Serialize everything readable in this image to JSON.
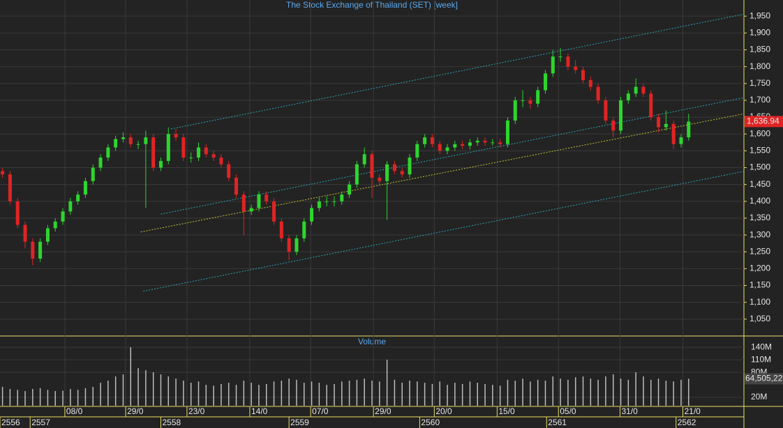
{
  "chart_data": [
    {
      "type": "candlestick",
      "title": "The Stock Exchange of Thailand (SET) [week]",
      "x": [
        1,
        4,
        7,
        10,
        13,
        16,
        19,
        22,
        25,
        28,
        31,
        34,
        37,
        40,
        43,
        46,
        49,
        52,
        55,
        58,
        61,
        64,
        67,
        70,
        73,
        76,
        79,
        82,
        85,
        88,
        91,
        94,
        97,
        100,
        103,
        106,
        109,
        112,
        115,
        118,
        121,
        124,
        127,
        130,
        133,
        136,
        139,
        142,
        145,
        148,
        151,
        154,
        157,
        160,
        163,
        166,
        169,
        172,
        175,
        178,
        181,
        184,
        187,
        190,
        193,
        196,
        199,
        202,
        205,
        208,
        211,
        214,
        217,
        220,
        223,
        226,
        229,
        232,
        235,
        238,
        241,
        244,
        247,
        250,
        253,
        256,
        259,
        262,
        265,
        268,
        271,
        274
      ],
      "open": [
        1490,
        1480,
        1400,
        1330,
        1280,
        1230,
        1280,
        1320,
        1340,
        1370,
        1400,
        1420,
        1460,
        1500,
        1530,
        1560,
        1585,
        1590,
        1570,
        1570,
        1590,
        1500,
        1520,
        1600,
        1590,
        1530,
        1530,
        1560,
        1540,
        1530,
        1510,
        1470,
        1420,
        1370,
        1380,
        1420,
        1400,
        1340,
        1290,
        1250,
        1290,
        1340,
        1380,
        1400,
        1400,
        1400,
        1420,
        1450,
        1510,
        1540,
        1470,
        1460,
        1510,
        1490,
        1480,
        1530,
        1570,
        1590,
        1570,
        1550,
        1560,
        1570,
        1565,
        1575,
        1580,
        1575,
        1575,
        1570,
        1640,
        1700,
        1700,
        1690,
        1730,
        1780,
        1830,
        1830,
        1800,
        1790,
        1760,
        1740,
        1700,
        1640,
        1610,
        1700,
        1720,
        1740,
        1720,
        1650,
        1620,
        1630,
        1570,
        1590
      ],
      "high": [
        1500,
        1490,
        1410,
        1340,
        1290,
        1290,
        1330,
        1350,
        1380,
        1410,
        1430,
        1470,
        1510,
        1540,
        1570,
        1595,
        1605,
        1600,
        1580,
        1610,
        1600,
        1530,
        1620,
        1615,
        1600,
        1545,
        1575,
        1570,
        1550,
        1540,
        1520,
        1480,
        1430,
        1390,
        1430,
        1430,
        1410,
        1350,
        1300,
        1300,
        1350,
        1390,
        1410,
        1415,
        1415,
        1430,
        1460,
        1520,
        1560,
        1550,
        1480,
        1520,
        1520,
        1500,
        1540,
        1580,
        1600,
        1600,
        1580,
        1570,
        1580,
        1580,
        1585,
        1590,
        1590,
        1585,
        1585,
        1650,
        1710,
        1730,
        1710,
        1740,
        1790,
        1850,
        1855,
        1840,
        1820,
        1800,
        1770,
        1750,
        1710,
        1650,
        1710,
        1730,
        1765,
        1750,
        1730,
        1660,
        1670,
        1640,
        1600,
        1660
      ],
      "low": [
        1470,
        1390,
        1320,
        1260,
        1210,
        1220,
        1270,
        1310,
        1330,
        1360,
        1390,
        1410,
        1450,
        1490,
        1520,
        1550,
        1575,
        1560,
        1555,
        1380,
        1490,
        1490,
        1510,
        1580,
        1520,
        1515,
        1520,
        1530,
        1520,
        1500,
        1460,
        1410,
        1300,
        1360,
        1370,
        1390,
        1330,
        1280,
        1225,
        1240,
        1280,
        1330,
        1370,
        1385,
        1385,
        1390,
        1410,
        1440,
        1500,
        1410,
        1450,
        1345,
        1480,
        1470,
        1470,
        1520,
        1560,
        1560,
        1540,
        1540,
        1550,
        1555,
        1555,
        1565,
        1565,
        1565,
        1560,
        1560,
        1630,
        1680,
        1675,
        1680,
        1720,
        1770,
        1815,
        1790,
        1780,
        1750,
        1730,
        1690,
        1630,
        1590,
        1600,
        1690,
        1710,
        1710,
        1640,
        1605,
        1610,
        1555,
        1560,
        1580
      ],
      "close": [
        1480,
        1400,
        1330,
        1280,
        1230,
        1280,
        1320,
        1340,
        1370,
        1400,
        1420,
        1460,
        1500,
        1530,
        1560,
        1585,
        1590,
        1570,
        1570,
        1590,
        1500,
        1520,
        1600,
        1590,
        1530,
        1530,
        1560,
        1540,
        1530,
        1510,
        1470,
        1420,
        1370,
        1380,
        1420,
        1400,
        1340,
        1290,
        1250,
        1290,
        1340,
        1380,
        1400,
        1400,
        1400,
        1420,
        1450,
        1510,
        1540,
        1470,
        1460,
        1510,
        1490,
        1480,
        1530,
        1570,
        1590,
        1570,
        1550,
        1560,
        1570,
        1565,
        1575,
        1580,
        1575,
        1575,
        1570,
        1640,
        1700,
        1700,
        1690,
        1730,
        1780,
        1830,
        1830,
        1800,
        1790,
        1760,
        1740,
        1700,
        1640,
        1610,
        1700,
        1720,
        1740,
        1720,
        1650,
        1620,
        1630,
        1570,
        1590,
        1636.94
      ],
      "last_price_label": "1,636.94",
      "up_color": "#2ed52e",
      "down_color": "#e02424",
      "xlim": [
        0,
        296
      ],
      "ylim": [
        1000,
        1998
      ],
      "xticks": [
        {
          "value": 25.8,
          "label": "08/0"
        },
        {
          "value": 50,
          "label": "29/0"
        },
        {
          "value": 74.4,
          "label": "23/0"
        },
        {
          "value": 99.4,
          "label": "14/0"
        },
        {
          "value": 123.6,
          "label": "07/0"
        },
        {
          "value": 148.6,
          "label": "29/0"
        },
        {
          "value": 172.8,
          "label": "20/0"
        },
        {
          "value": 197.8,
          "label": "15/0"
        },
        {
          "value": 222.2,
          "label": "05/0"
        },
        {
          "value": 246.7,
          "label": "31/0"
        },
        {
          "value": 271.7,
          "label": "21/0"
        }
      ],
      "year_ticks": [
        {
          "value": 0,
          "label": "2556"
        },
        {
          "value": 12,
          "label": "2557"
        },
        {
          "value": 64,
          "label": "2558"
        },
        {
          "value": 115,
          "label": "2559"
        },
        {
          "value": 167,
          "label": "2560"
        },
        {
          "value": 217.5,
          "label": "2561"
        },
        {
          "value": 269,
          "label": "2562"
        }
      ],
      "yticks": [
        {
          "value": 1050,
          "label": "1,050"
        },
        {
          "value": 1100,
          "label": "1,100"
        },
        {
          "value": 1150,
          "label": "1,150"
        },
        {
          "value": 1200,
          "label": "1,200"
        },
        {
          "value": 1250,
          "label": "1,250"
        },
        {
          "value": 1300,
          "label": "1,300"
        },
        {
          "value": 1350,
          "label": "1,350"
        },
        {
          "value": 1400,
          "label": "1,400"
        },
        {
          "value": 1450,
          "label": "1,450"
        },
        {
          "value": 1500,
          "label": "1,500"
        },
        {
          "value": 1550,
          "label": "1,550"
        },
        {
          "value": 1600,
          "label": "1,600"
        },
        {
          "value": 1650,
          "label": "1,650"
        },
        {
          "value": 1700,
          "label": "1,700"
        },
        {
          "value": 1750,
          "label": "1,750"
        },
        {
          "value": 1800,
          "label": "1,800"
        },
        {
          "value": 1850,
          "label": "1,850"
        },
        {
          "value": 1900,
          "label": "1,900"
        },
        {
          "value": 1950,
          "label": "1,950"
        }
      ],
      "grid": true,
      "trendlines": [
        {
          "color": "#2aa7b5",
          "x": [
            68,
            296
          ],
          "y": [
            1615,
            1956
          ]
        },
        {
          "color": "#2aa7b5",
          "x": [
            64,
            296
          ],
          "y": [
            1362,
            1708
          ]
        },
        {
          "color": "#2aa7b5",
          "x": [
            57,
            296
          ],
          "y": [
            1133,
            1489
          ]
        },
        {
          "color": "#c8c832",
          "x": [
            56,
            296
          ],
          "y": [
            1309,
            1660
          ]
        }
      ]
    },
    {
      "type": "volume",
      "title": "Volume",
      "color": "#bdbdbd",
      "values": [
        45,
        40,
        38,
        35,
        40,
        42,
        38,
        35,
        36,
        40,
        38,
        42,
        45,
        55,
        60,
        70,
        75,
        140,
        90,
        85,
        80,
        75,
        70,
        65,
        60,
        55,
        58,
        50,
        48,
        52,
        55,
        50,
        60,
        55,
        50,
        52,
        58,
        60,
        65,
        62,
        55,
        58,
        55,
        50,
        52,
        58,
        60,
        62,
        65,
        60,
        58,
        110,
        62,
        55,
        60,
        58,
        55,
        52,
        58,
        50,
        55,
        52,
        58,
        55,
        52,
        50,
        48,
        62,
        60,
        65,
        58,
        62,
        60,
        70,
        65,
        62,
        68,
        70,
        65,
        62,
        70,
        75,
        65,
        62,
        80,
        70,
        62,
        65,
        60,
        58,
        62,
        64.5
      ],
      "last_volume_label": "64,505,22",
      "ylim": [
        0,
        167
      ],
      "yticks": [
        {
          "value": 20,
          "label": "20M"
        },
        {
          "value": 80,
          "label": "80M"
        },
        {
          "value": 110,
          "label": "110M"
        },
        {
          "value": 140,
          "label": "140M"
        }
      ]
    }
  ]
}
